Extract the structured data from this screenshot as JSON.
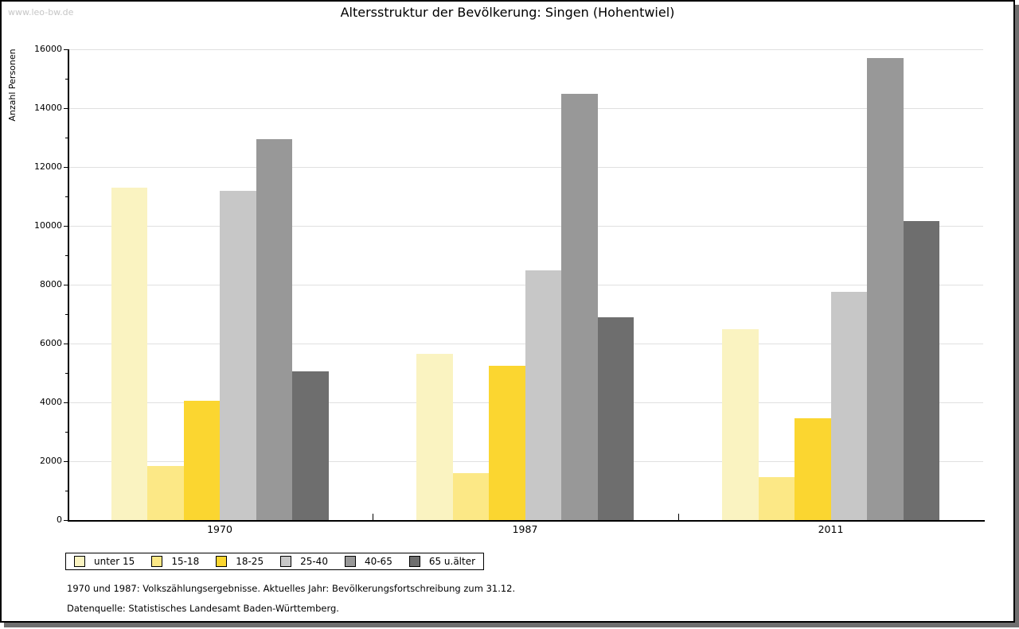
{
  "watermark": "www.leo-bw.de",
  "title": "Altersstruktur der Bevölkerung: Singen (Hohentwiel)",
  "chart_data": {
    "type": "bar",
    "title": "Altersstruktur der Bevölkerung: Singen (Hohentwiel)",
    "xlabel": "",
    "ylabel": "Anzahl Personen",
    "ylim": [
      0,
      16000
    ],
    "ytick_step": 2000,
    "minor_tick_step": 1000,
    "grid": true,
    "legend_position": "bottom",
    "categories": [
      "1970",
      "1987",
      "2011"
    ],
    "series": [
      {
        "name": "unter 15",
        "color": "#FAF3C1",
        "values": [
          11300,
          5650,
          6500
        ]
      },
      {
        "name": "15-18",
        "color": "#FCE886",
        "values": [
          1850,
          1600,
          1450
        ]
      },
      {
        "name": "18-25",
        "color": "#FBD630",
        "values": [
          4050,
          5250,
          3450
        ]
      },
      {
        "name": "25-40",
        "color": "#C7C7C7",
        "values": [
          11200,
          8500,
          7750
        ]
      },
      {
        "name": "40-65",
        "color": "#989898",
        "values": [
          12950,
          14500,
          15700
        ]
      },
      {
        "name": "65 u.älter",
        "color": "#6E6E6E",
        "values": [
          5050,
          6900,
          10150
        ]
      }
    ]
  },
  "footnotes": [
    "1970 und 1987: Volkszählungsergebnisse. Aktuelles Jahr: Bevölkerungsfortschreibung zum 31.12.",
    "Datenquelle: Statistisches Landesamt Baden-Württemberg."
  ]
}
